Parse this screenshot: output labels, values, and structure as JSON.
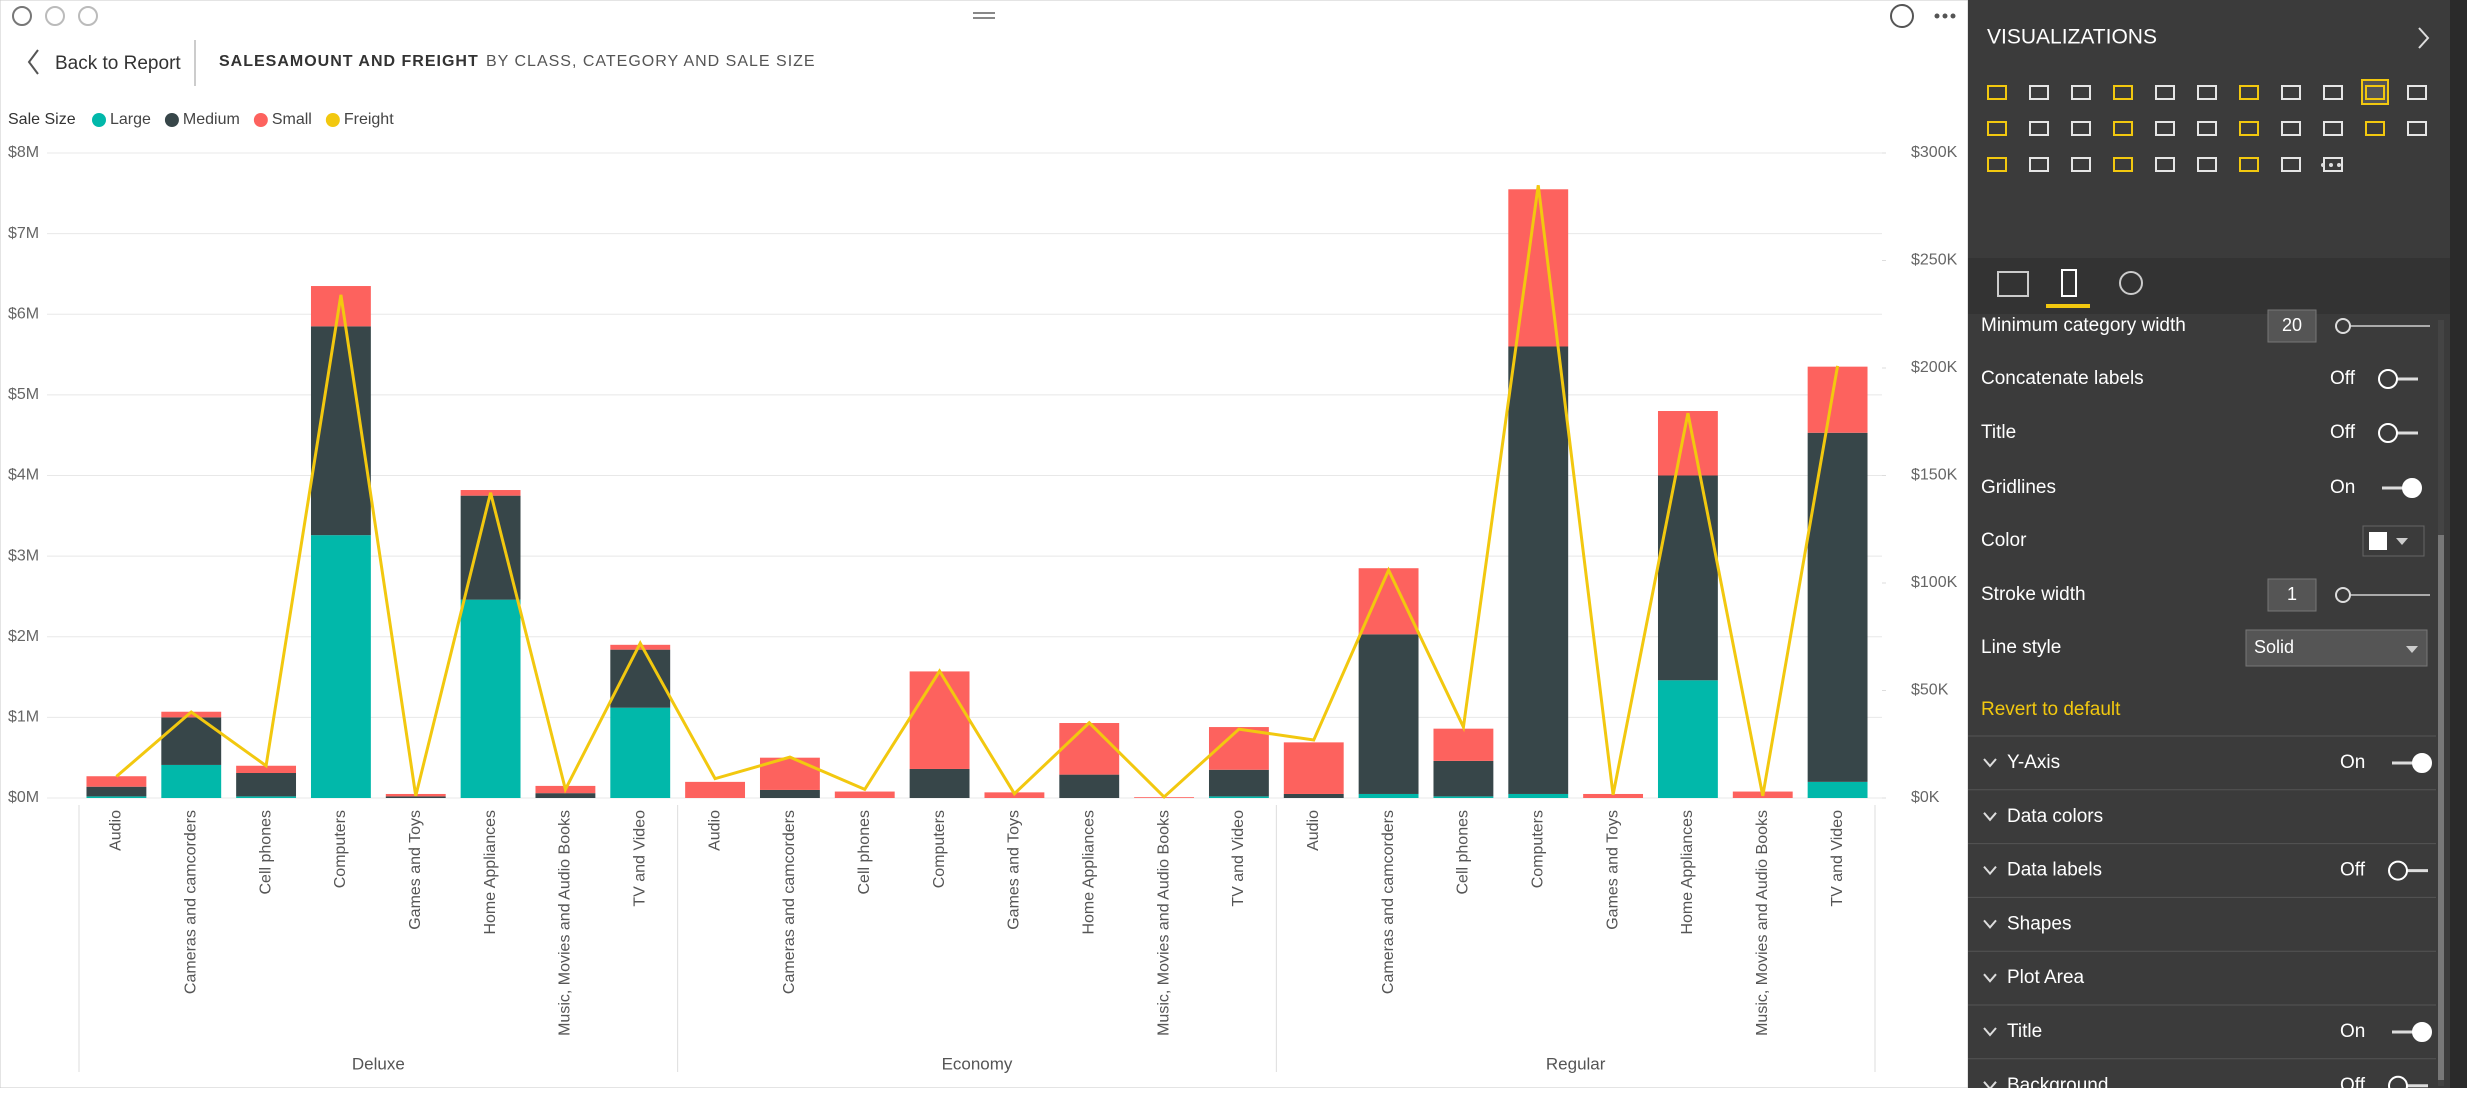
{
  "header": {
    "back": "Back to Report",
    "title": "SALESAMOUNT AND FREIGHT",
    "subtitle": "BY CLASS, CATEGORY AND SALE SIZE"
  },
  "chart_data": {
    "type": "bar-line",
    "stacked": true,
    "legend_title": "Sale Size",
    "legend": "top-left",
    "grid": true,
    "categories": [
      "Audio",
      "Cameras and camcorders",
      "Cell phones",
      "Computers",
      "Games and Toys",
      "Home Appliances",
      "Music, Movies and Audio Books",
      "TV and Video",
      "Audio",
      "Cameras and camcorders",
      "Cell phones",
      "Computers",
      "Games and Toys",
      "Home Appliances",
      "Music, Movies and Audio Books",
      "TV and Video",
      "Audio",
      "Cameras and camcorders",
      "Cell phones",
      "Computers",
      "Games and Toys",
      "Home Appliances",
      "Music, Movies and Audio Books",
      "TV and Video"
    ],
    "groups": [
      "Deluxe",
      "Economy",
      "Regular"
    ],
    "series": [
      {
        "name": "Large",
        "color": "#01B8AA",
        "type": "bar",
        "values": [
          0.02,
          0.41,
          0.02,
          3.26,
          0,
          2.46,
          0,
          1.12,
          0,
          0,
          0,
          0,
          0,
          0,
          0,
          0.02,
          0,
          0.05,
          0.02,
          0.05,
          0,
          1.46,
          0,
          0.2
        ]
      },
      {
        "name": "Medium",
        "color": "#374649",
        "type": "bar",
        "values": [
          0.12,
          0.59,
          0.29,
          2.59,
          0.02,
          1.29,
          0.06,
          0.72,
          0,
          0.1,
          0,
          0.36,
          0,
          0.29,
          0,
          0.33,
          0.05,
          1.98,
          0.44,
          5.55,
          0,
          2.54,
          0,
          4.33
        ]
      },
      {
        "name": "Small",
        "color": "#FD625E",
        "type": "bar",
        "values": [
          0.13,
          0.07,
          0.09,
          0.5,
          0.03,
          0.07,
          0.09,
          0.06,
          0.2,
          0.4,
          0.08,
          1.21,
          0.07,
          0.64,
          0.01,
          0.53,
          0.64,
          0.82,
          0.4,
          1.95,
          0.05,
          0.8,
          0.08,
          0.82
        ]
      },
      {
        "name": "Freight",
        "color": "#F2C80F",
        "type": "line",
        "axis": "y2",
        "values": [
          10,
          40,
          15,
          234,
          1,
          142,
          4,
          72,
          9,
          19,
          4,
          59,
          2,
          35,
          0.5,
          32,
          27,
          106,
          33,
          285,
          1.5,
          179,
          1,
          201
        ]
      }
    ],
    "ylim": [
      0,
      8
    ],
    "yticks": [
      {
        "value": 0,
        "label": "$0M"
      },
      {
        "value": 1,
        "label": "$1M"
      },
      {
        "value": 2,
        "label": "$2M"
      },
      {
        "value": 3,
        "label": "$3M"
      },
      {
        "value": 4,
        "label": "$4M"
      },
      {
        "value": 5,
        "label": "$5M"
      },
      {
        "value": 6,
        "label": "$6M"
      },
      {
        "value": 7,
        "label": "$7M"
      },
      {
        "value": 8,
        "label": "$8M"
      }
    ],
    "y2lim": [
      0,
      300
    ],
    "y2ticks": [
      {
        "value": 0,
        "label": "$0K"
      },
      {
        "value": 50,
        "label": "$50K"
      },
      {
        "value": 100,
        "label": "$100K"
      },
      {
        "value": 150,
        "label": "$150K"
      },
      {
        "value": 200,
        "label": "$200K"
      },
      {
        "value": 250,
        "label": "$250K"
      },
      {
        "value": 300,
        "label": "$300K"
      }
    ]
  },
  "panel": {
    "title": "VISUALIZATIONS",
    "rows": [
      {
        "label": "Minimum category width",
        "input": 20
      },
      {
        "label": "Concatenate labels",
        "state": "Off",
        "on": false
      },
      {
        "label": "Title",
        "state": "Off",
        "on": false
      },
      {
        "label": "Gridlines",
        "state": "On",
        "on": true
      },
      {
        "label": "Color",
        "swatch": "#ffffff"
      },
      {
        "label": "Stroke width",
        "input": 1
      },
      {
        "label": "Line style",
        "dropdown": "Solid"
      }
    ],
    "revert": "Revert to default",
    "sections": [
      {
        "label": "Y-Axis",
        "state": "On",
        "on": true
      },
      {
        "label": "Data colors"
      },
      {
        "label": "Data labels",
        "state": "Off",
        "on": false
      },
      {
        "label": "Shapes"
      },
      {
        "label": "Plot Area"
      },
      {
        "label": "Title",
        "state": "On",
        "on": true
      },
      {
        "label": "Background",
        "state": "Off",
        "on": false
      }
    ]
  }
}
